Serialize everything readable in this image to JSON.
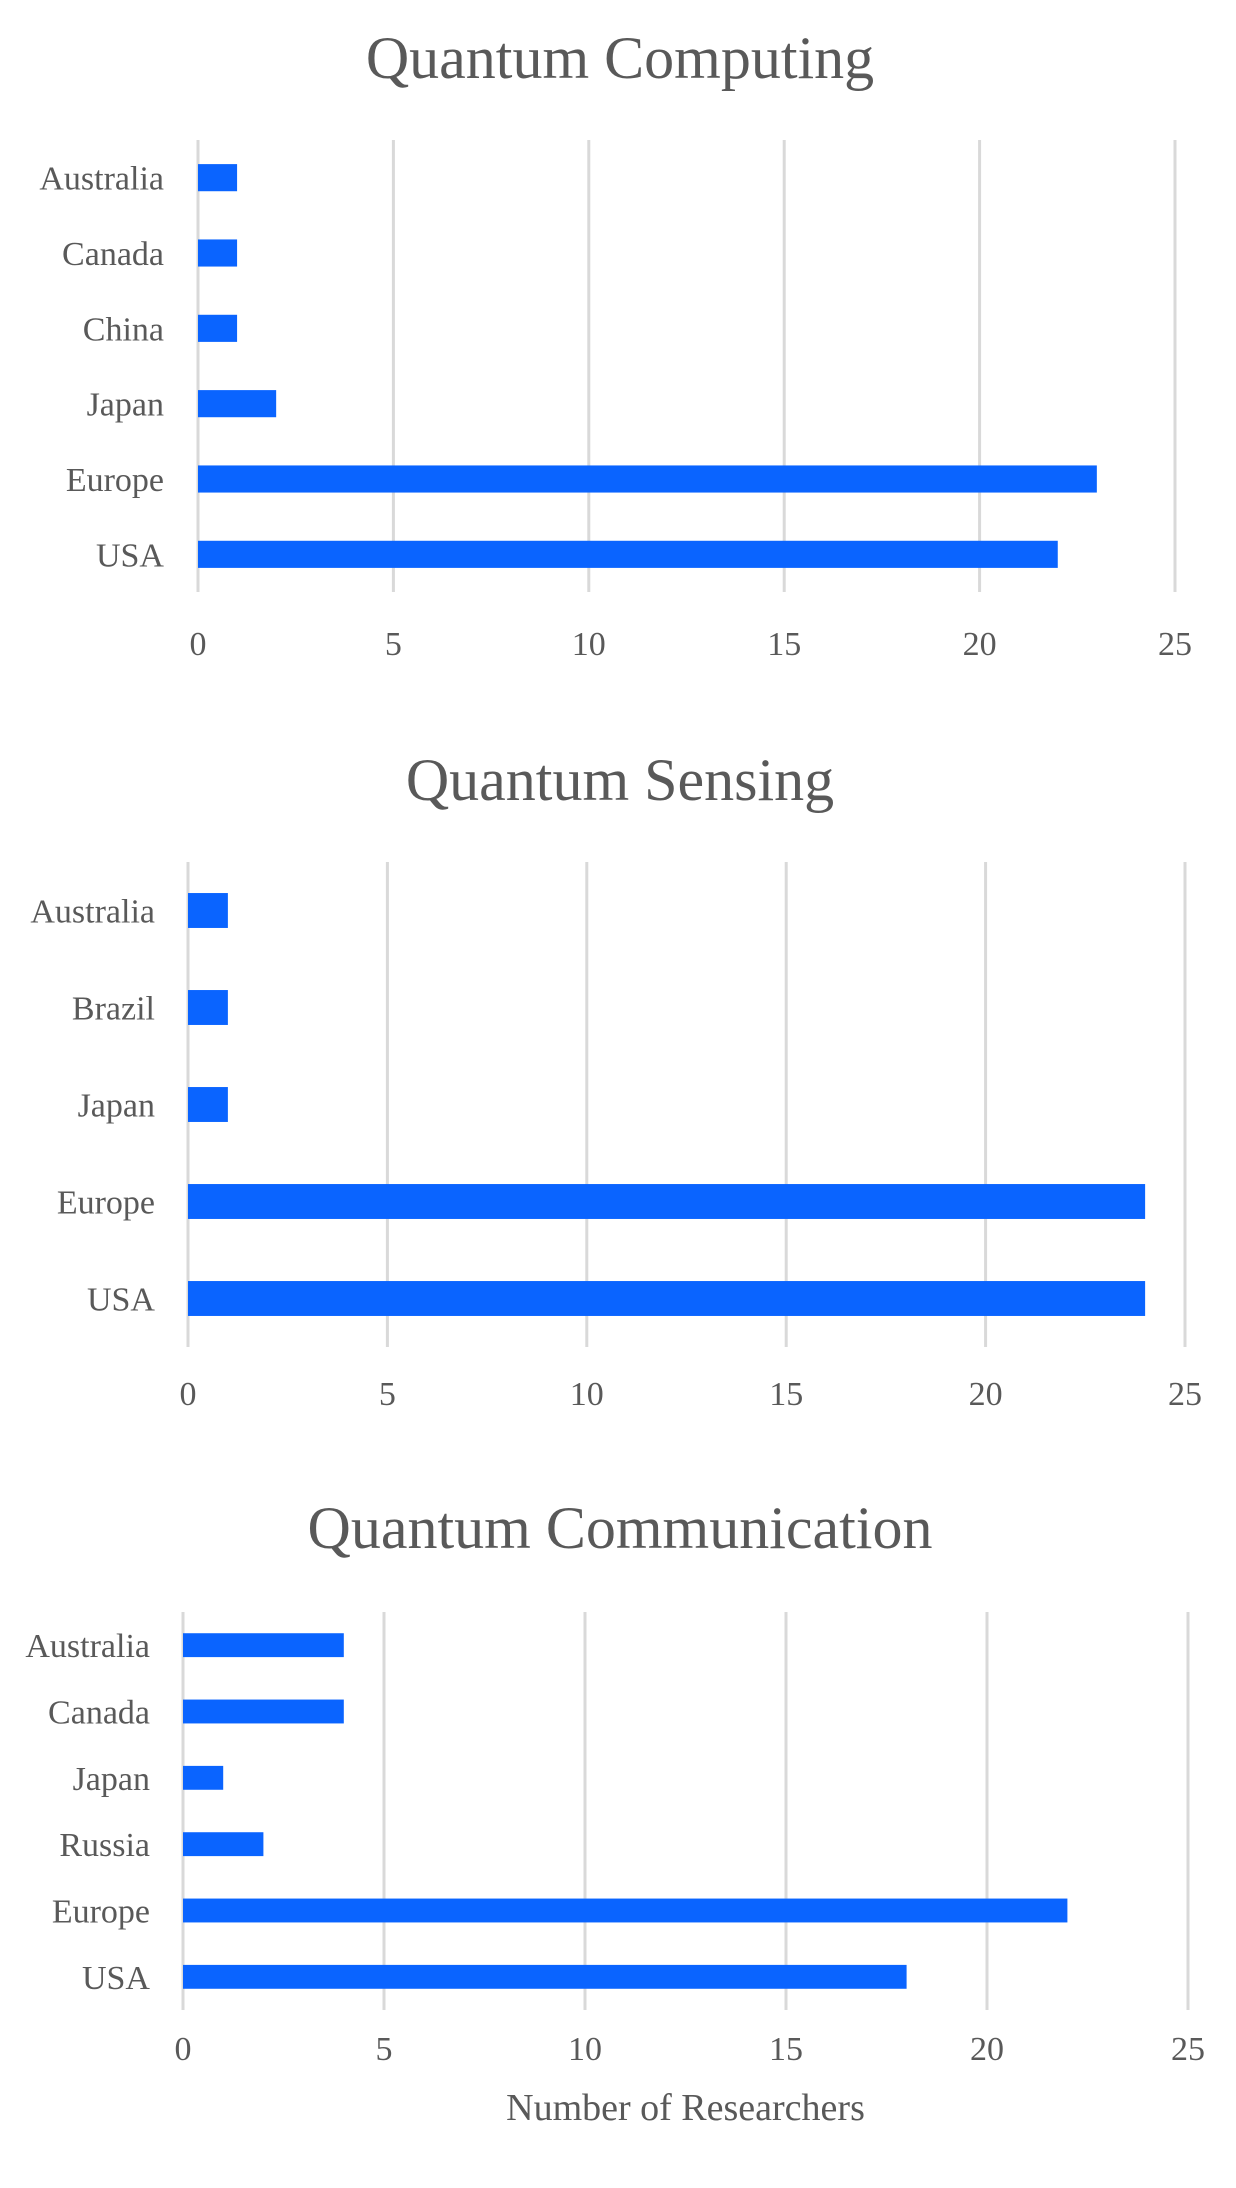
{
  "bar_color": "#0a64ff",
  "grid_color": "#d9d9d9",
  "text_color": "#595959",
  "chart_data": [
    {
      "type": "bar",
      "orientation": "horizontal",
      "title": "Quantum Computing",
      "categories": [
        "Australia",
        "Canada",
        "China",
        "Japan",
        "Europe",
        "USA"
      ],
      "values": [
        1,
        1,
        1,
        2,
        23,
        22
      ],
      "xlim": [
        0,
        25
      ],
      "xticks": [
        "0",
        "5",
        "10",
        "15",
        "20",
        "25"
      ],
      "xlabel": "",
      "grid": true
    },
    {
      "type": "bar",
      "orientation": "horizontal",
      "title": "Quantum Sensing",
      "categories": [
        "Australia",
        "Brazil",
        "Japan",
        "Europe",
        "USA"
      ],
      "values": [
        1,
        1,
        1,
        24,
        24
      ],
      "xlim": [
        0,
        25
      ],
      "xticks": [
        "0",
        "5",
        "10",
        "15",
        "20",
        "25"
      ],
      "xlabel": "",
      "grid": true
    },
    {
      "type": "bar",
      "orientation": "horizontal",
      "title": "Quantum Communication",
      "categories": [
        "Australia",
        "Canada",
        "Japan",
        "Russia",
        "Europe",
        "USA"
      ],
      "values": [
        4,
        4,
        1,
        2,
        22,
        18
      ],
      "xlim": [
        0,
        25
      ],
      "xticks": [
        "0",
        "5",
        "10",
        "15",
        "20",
        "25"
      ],
      "xlabel": "Number of Researchers",
      "grid": true
    }
  ]
}
